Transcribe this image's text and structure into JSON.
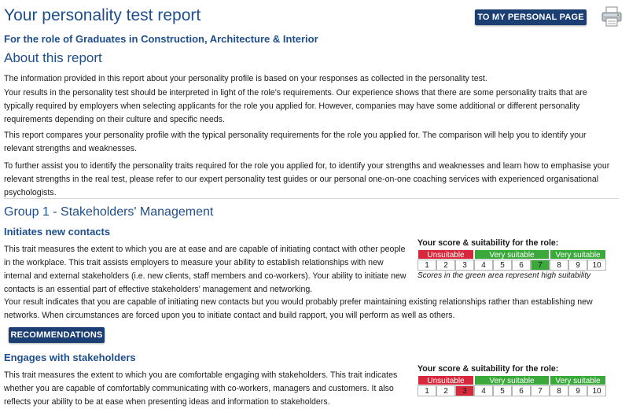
{
  "header": {
    "title": "Your personality test report",
    "personal_page_button": "TO MY PERSONAL PAGE",
    "print_icon": "printer-icon",
    "role": "For the role of Graduates in Construction, Architecture & Interior"
  },
  "about": {
    "heading": "About this report",
    "p1": "The information provided in this report about your personality profile is based on your responses as collected in the personality test.",
    "p2": "Your results in the personality test should be interpreted in light of the role's requirements. Our experience shows that there are some personality traits that are typically required by employers when selecting applicants for the role you applied for. However, companies may have some additional or different personality requirements depending on their culture and specific needs.",
    "p3": "This report compares your personality profile with the typical personality requirements for the role you applied for. The comparison will help you to identify your relevant strengths and weaknesses.",
    "p4": "To further assist you to identify the personality traits required for the role you applied for, to identify your strengths and weaknesses and learn how to emphasise your relevant strengths in the real test, please refer to our expert personality test guides or our personal one-on-one coaching services with experienced organisational psychologists."
  },
  "group": {
    "heading": "Group 1 - Stakeholders' Management",
    "traits": [
      {
        "name": "Initiates new contacts",
        "description": "This trait measures the extent to which you are at ease and are capable of initiating contact with other people in the workplace. This trait assists employers to measure your ability to establish relationships with new internal and external stakeholders (i.e. new clients, staff members and co-workers). Your ability to initiate new contacts is an essential part of effective stakeholders' management and networking.",
        "result": "Your result indicates that you are capable of initiating new contacts but you would probably prefer maintaining existing relationships rather than establishing new networks. When circumstances are forced upon you to initiate contact and build rapport, you will perform as well as others.",
        "recommendations_button": "RECOMMENDATIONS",
        "score_title": "Your score & suitability for the role:",
        "bands": [
          "Unsuitable",
          "Very suitable",
          "Very suitable"
        ],
        "scale": [
          "1",
          "2",
          "3",
          "4",
          "5",
          "6",
          "7",
          "8",
          "9",
          "10"
        ],
        "score": 7,
        "note": "Scores in the green area represent high suitability"
      },
      {
        "name": "Engages with stakeholders",
        "description": "This trait measures the extent to which you are comfortable engaging with stakeholders. This trait indicates whether you are capable of comfortably communicating with co-workers, managers and customers. It also reflects your ability to be at ease when presenting ideas and information to stakeholders.",
        "score_title": "Your score & suitability for the role:",
        "bands": [
          "Unsuitable",
          "Very suitable",
          "Very suitable"
        ],
        "scale": [
          "1",
          "2",
          "3",
          "4",
          "5",
          "6",
          "7",
          "8",
          "9",
          "10"
        ],
        "score": 3
      }
    ]
  },
  "colors": {
    "heading_blue": "#1f4e8c",
    "button_navy": "#1c3f73",
    "band_red": "#d6283a",
    "band_green": "#3aa83a"
  }
}
